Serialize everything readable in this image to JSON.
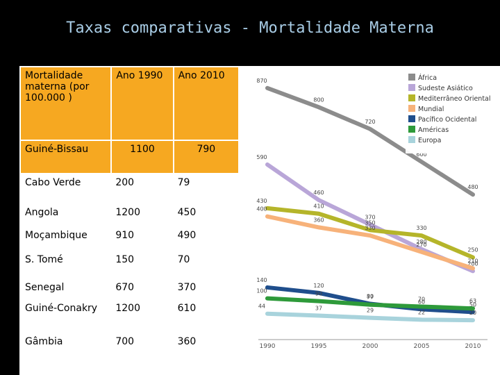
{
  "title": "Taxas comparativas - Mortalidade Materna",
  "table": {
    "header": [
      "Mortalidade materna (por 100.000 )",
      "Ano 1990",
      "Ano 2010"
    ],
    "rows": [
      [
        "Guiné-Bissau",
        1100,
        790
      ],
      [
        "Cabo Verde",
        200,
        79
      ],
      [
        "Angola",
        1200,
        450
      ],
      [
        "Moçambique",
        910,
        490
      ],
      [
        "S. Tomé",
        150,
        70
      ],
      [
        "Senegal",
        670,
        370
      ],
      [
        "Guiné-Conakry",
        1200,
        610
      ],
      [
        "Gâmbia",
        700,
        360
      ]
    ]
  },
  "chart_data": {
    "type": "line",
    "categories": [
      "1990",
      "1995",
      "2000",
      "2005",
      "2010"
    ],
    "ylim": [
      0,
      900
    ],
    "series": [
      {
        "name": "África",
        "color": "#8c8c8c",
        "values": [
          870,
          800,
          720,
          600,
          480
        ]
      },
      {
        "name": "Sudeste Asiático",
        "color": "#b9a6d8",
        "values": [
          590,
          460,
          370,
          280,
          200
        ]
      },
      {
        "name": "Mediterrâneo Oriental",
        "color": "#b5b52a",
        "values": [
          430,
          410,
          350,
          330,
          250
        ]
      },
      {
        "name": "Mundial",
        "color": "#f7b27a",
        "values": [
          400,
          360,
          330,
          270,
          210
        ]
      },
      {
        "name": "Pacífico Ocidental",
        "color": "#1f4e8c",
        "values": [
          140,
          120,
          80,
          60,
          50
        ]
      },
      {
        "name": "Américas",
        "color": "#2e9a3a",
        "values": [
          100,
          90,
          77,
          70,
          63
        ]
      },
      {
        "name": "Europa",
        "color": "#a8d3dc",
        "values": [
          44,
          37,
          29,
          22,
          20
        ]
      }
    ]
  }
}
